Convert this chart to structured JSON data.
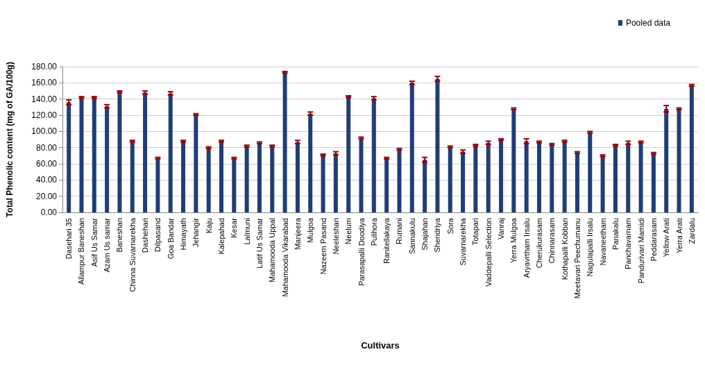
{
  "chart_data": {
    "type": "bar",
    "xlabel": "Cultivars",
    "ylabel": "Total Phenolic content (mg of GA/100g)",
    "categories": [
      "Dasehari 35",
      "Allampur Baneshan",
      "Asif Us Samar",
      "Azam Us samar",
      "Baneshan",
      "Chinna Suvarnarekha",
      "Dashehari",
      "Dilpasand",
      "Goa Bandar",
      "Himayath",
      "Jehangir",
      "Kaju",
      "Kalepahad",
      "Kesar",
      "Lalmuni",
      "Latif Us Samar",
      "Mahamooda Uppal",
      "Mahamooda Vikarabad",
      "Manjeera",
      "Mulgoa",
      "Nazeem Pasand",
      "Neeleshan",
      "Neelum",
      "Parasapalli Doodiya",
      "Pulihora",
      "Ranitellakaya",
      "Rumani",
      "Sannakulu",
      "Shajahan",
      "Shendriya",
      "Sora",
      "Suvarnarekha",
      "Totapari",
      "Vaddepalli Selection",
      "Vanraj",
      "Yerra Mulgoa",
      "Aryavrtham Irsalu",
      "Cherukurasam",
      "Chinnarasam",
      "Kothapalli Kobbari",
      "Meetavari Peechumanu",
      "Nagulapalli Irsalu",
      "Navaneetham",
      "Panakalu",
      "Panchavarnam",
      "Pandurivari Mamidi",
      "Peddarasam",
      "Yellow Arati",
      "Yerra Arati",
      "Zardalu"
    ],
    "series": [
      {
        "name": "Pooled data",
        "color": "#1f3d78",
        "values": [
          136,
          142,
          142,
          131,
          149,
          88,
          148,
          67,
          147,
          88,
          121,
          80,
          88,
          67,
          82,
          86,
          82,
          173,
          87,
          122,
          71,
          73,
          143,
          92,
          141,
          67,
          78,
          160,
          65,
          165,
          81,
          75,
          83,
          86,
          90,
          128,
          88,
          87,
          84,
          88,
          74,
          99,
          70,
          83,
          86,
          87,
          73,
          128,
          128,
          157
        ],
        "errors": [
          3,
          1,
          1,
          2,
          1,
          1,
          2,
          1,
          2,
          1,
          1,
          1,
          1,
          1,
          1,
          1,
          1,
          1,
          2,
          2,
          1,
          2,
          1,
          1,
          2,
          1,
          1,
          2,
          3,
          3,
          1,
          2,
          1,
          2,
          1,
          1,
          3,
          1,
          1,
          1,
          1,
          1,
          1,
          1,
          2,
          1,
          1,
          4,
          1,
          1
        ]
      }
    ],
    "ylim": [
      0,
      180
    ],
    "yticks": [
      {
        "value": 0,
        "label": "0.00"
      },
      {
        "value": 20,
        "label": "20.00"
      },
      {
        "value": 40,
        "label": "40.00"
      },
      {
        "value": 60,
        "label": "60.00"
      },
      {
        "value": 80,
        "label": "80.00"
      },
      {
        "value": 100,
        "label": "100.00"
      },
      {
        "value": 120,
        "label": "120.00"
      },
      {
        "value": 140,
        "label": "140.00"
      },
      {
        "value": 160,
        "label": "160.00"
      },
      {
        "value": 180,
        "label": "180.00"
      }
    ],
    "grid": "y",
    "legend": "top right"
  }
}
